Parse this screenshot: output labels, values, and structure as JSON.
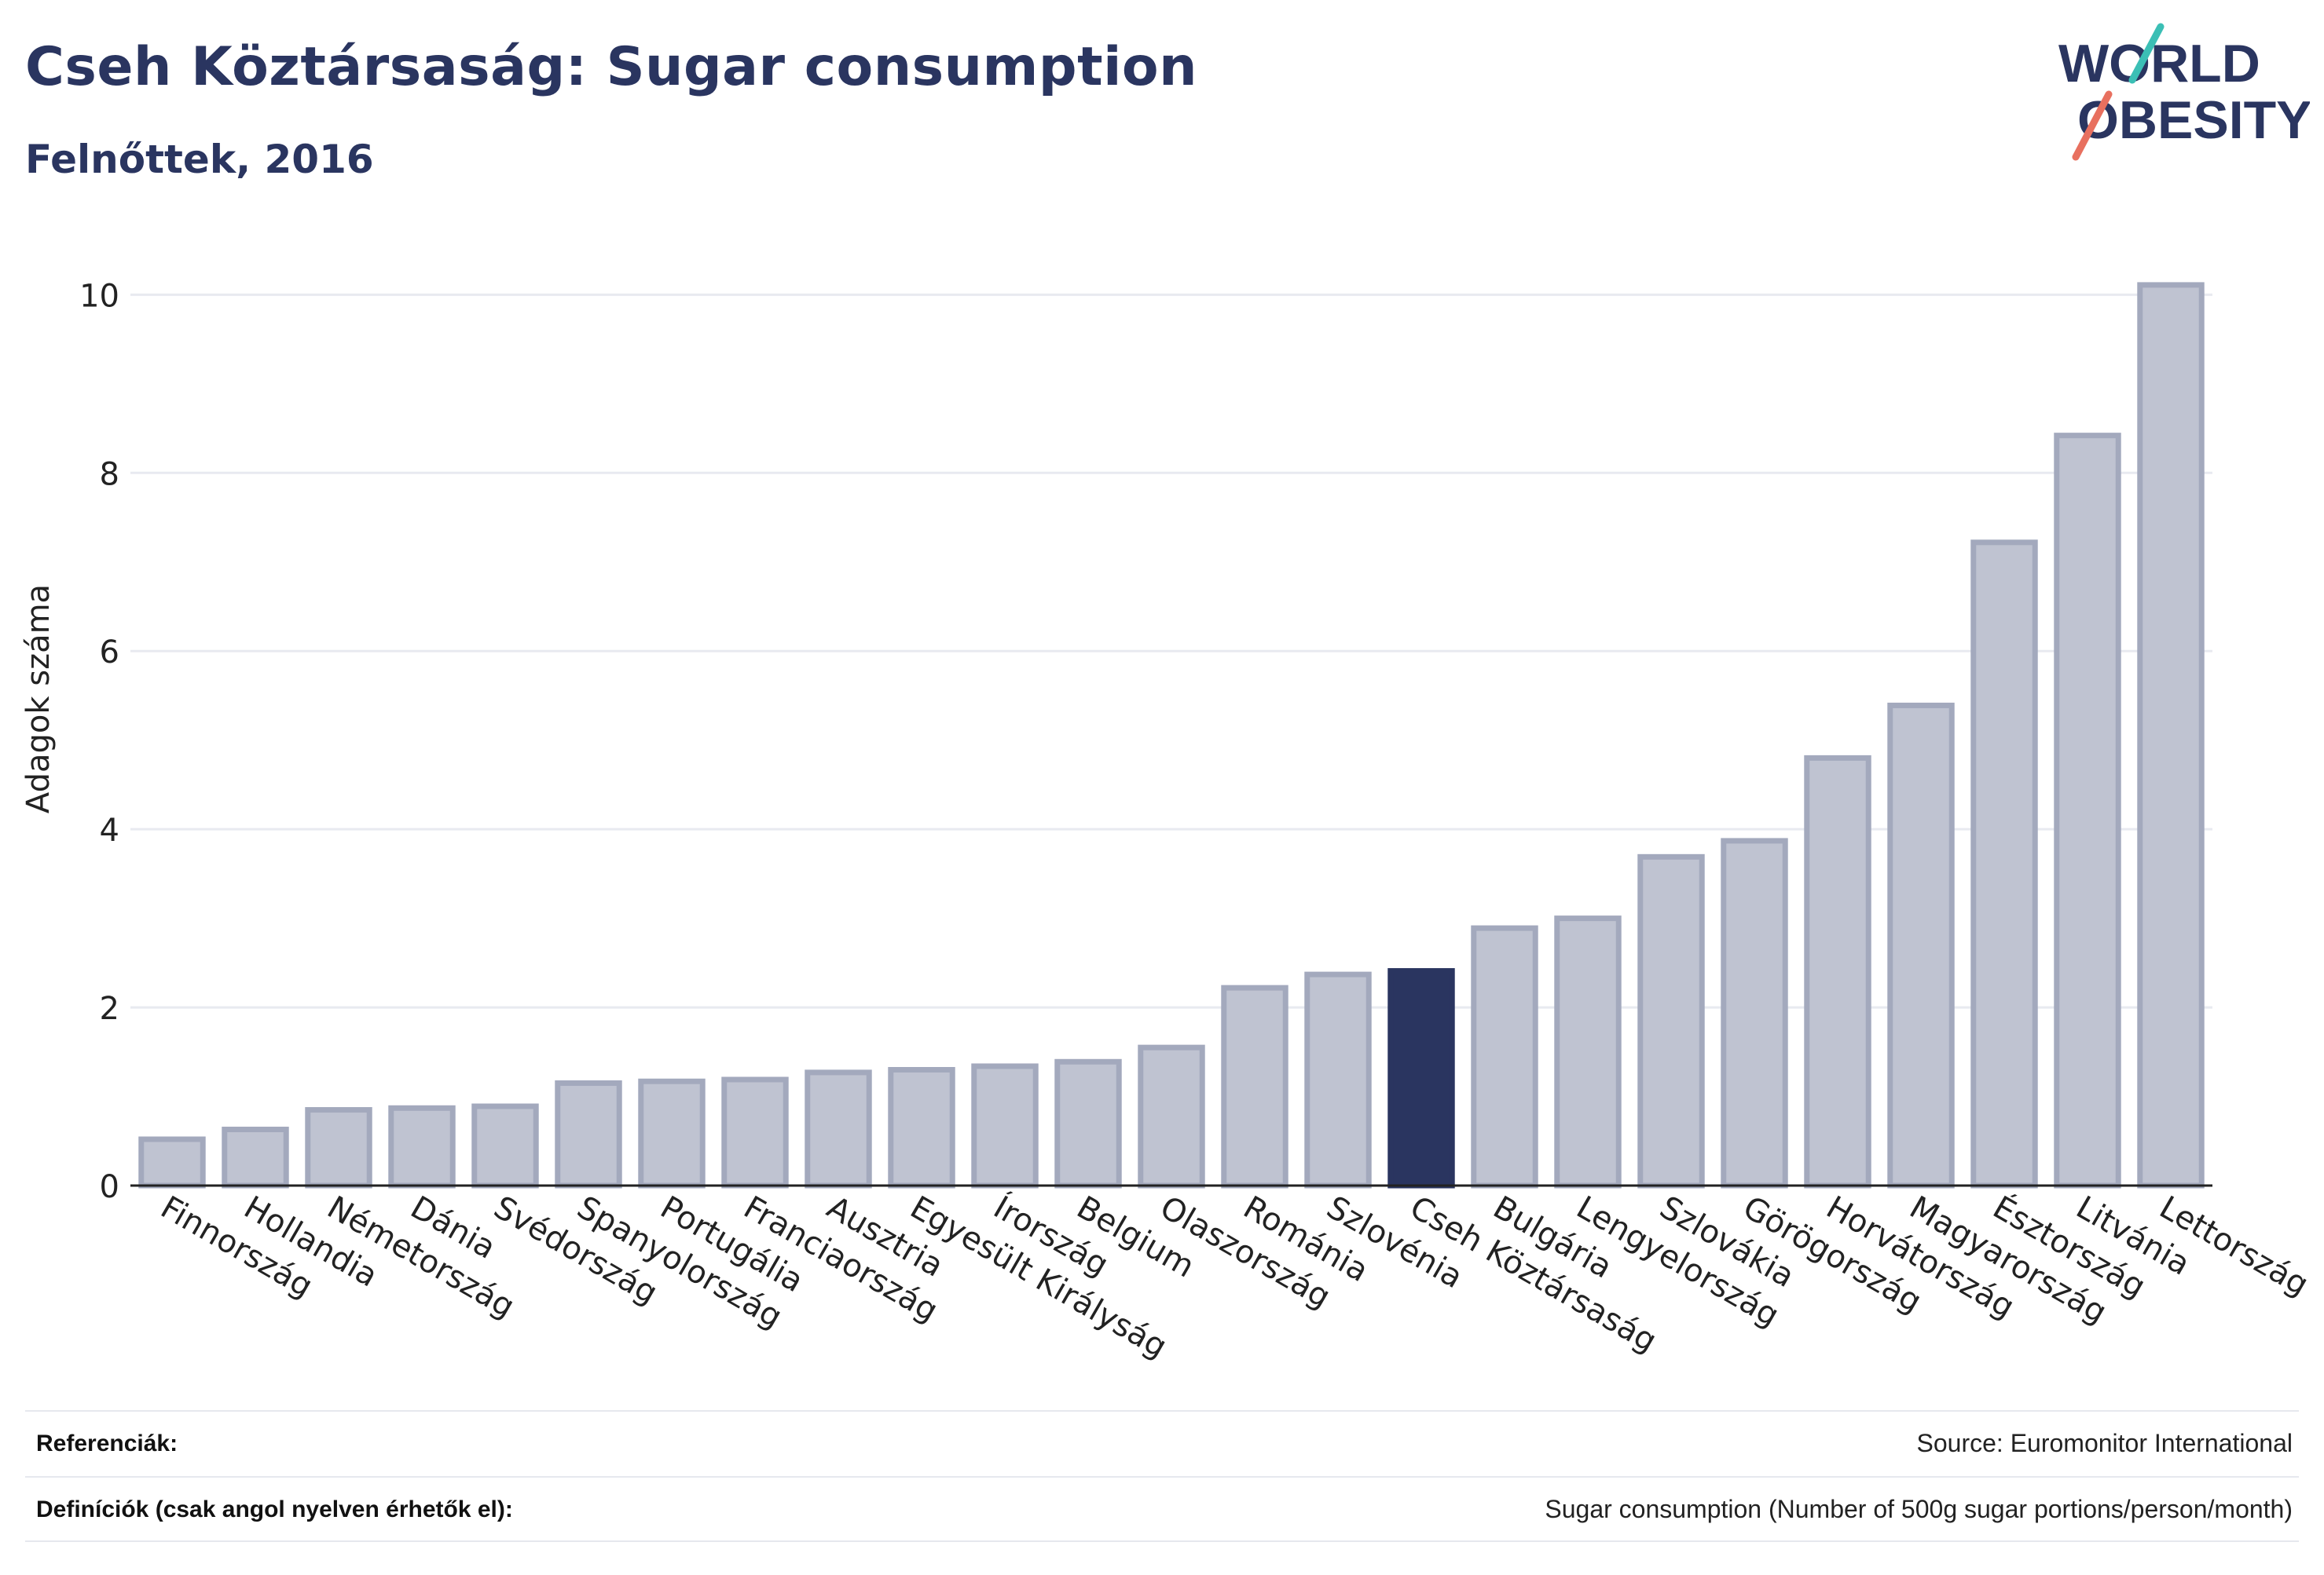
{
  "header": {
    "title": "Cseh Köztársaság: Sugar consumption",
    "subtitle": "Felnőttek, 2016"
  },
  "logo": {
    "line1": "WORLD",
    "line2": "OBESITY",
    "accent_teal": "#3bbfb5",
    "accent_coral": "#e8705f"
  },
  "colors": {
    "bar_fill": "#bfc3d1",
    "bar_stroke": "#a3a9bd",
    "highlight": "#2a3560",
    "grid": "#e8eaf0",
    "axis": "#222222"
  },
  "chart_data": {
    "type": "bar",
    "ylabel": "Adagok száma",
    "ylim": [
      0,
      10.4
    ],
    "yticks": [
      0,
      2,
      4,
      6,
      8,
      10
    ],
    "grid": true,
    "highlight_category": "Cseh Köztársaság",
    "categories": [
      "Finnország",
      "Hollandia",
      "Németország",
      "Dánia",
      "Svédország",
      "Spanyolország",
      "Portugália",
      "Franciaország",
      "Ausztria",
      "Egyesült Királyság",
      "Írország",
      "Belgium",
      "Olaszország",
      "Románia",
      "Szlovénia",
      "Cseh Köztársaság",
      "Bulgária",
      "Lengyelország",
      "Szlovákia",
      "Görögország",
      "Horvátország",
      "Magyarország",
      "Észtország",
      "Litvánia",
      "Lettország"
    ],
    "values": [
      0.52,
      0.63,
      0.85,
      0.87,
      0.89,
      1.15,
      1.17,
      1.19,
      1.27,
      1.3,
      1.34,
      1.39,
      1.55,
      2.22,
      2.37,
      2.41,
      2.89,
      3.0,
      3.69,
      3.87,
      4.8,
      5.39,
      7.22,
      8.42,
      10.11
    ]
  },
  "footer": {
    "references_label": "Referenciák:",
    "references_value": "Source: Euromonitor International",
    "definitions_label": "Definíciók (csak angol nyelven érhetők el):",
    "definitions_value": "Sugar consumption (Number of 500g sugar portions/person/month)"
  }
}
